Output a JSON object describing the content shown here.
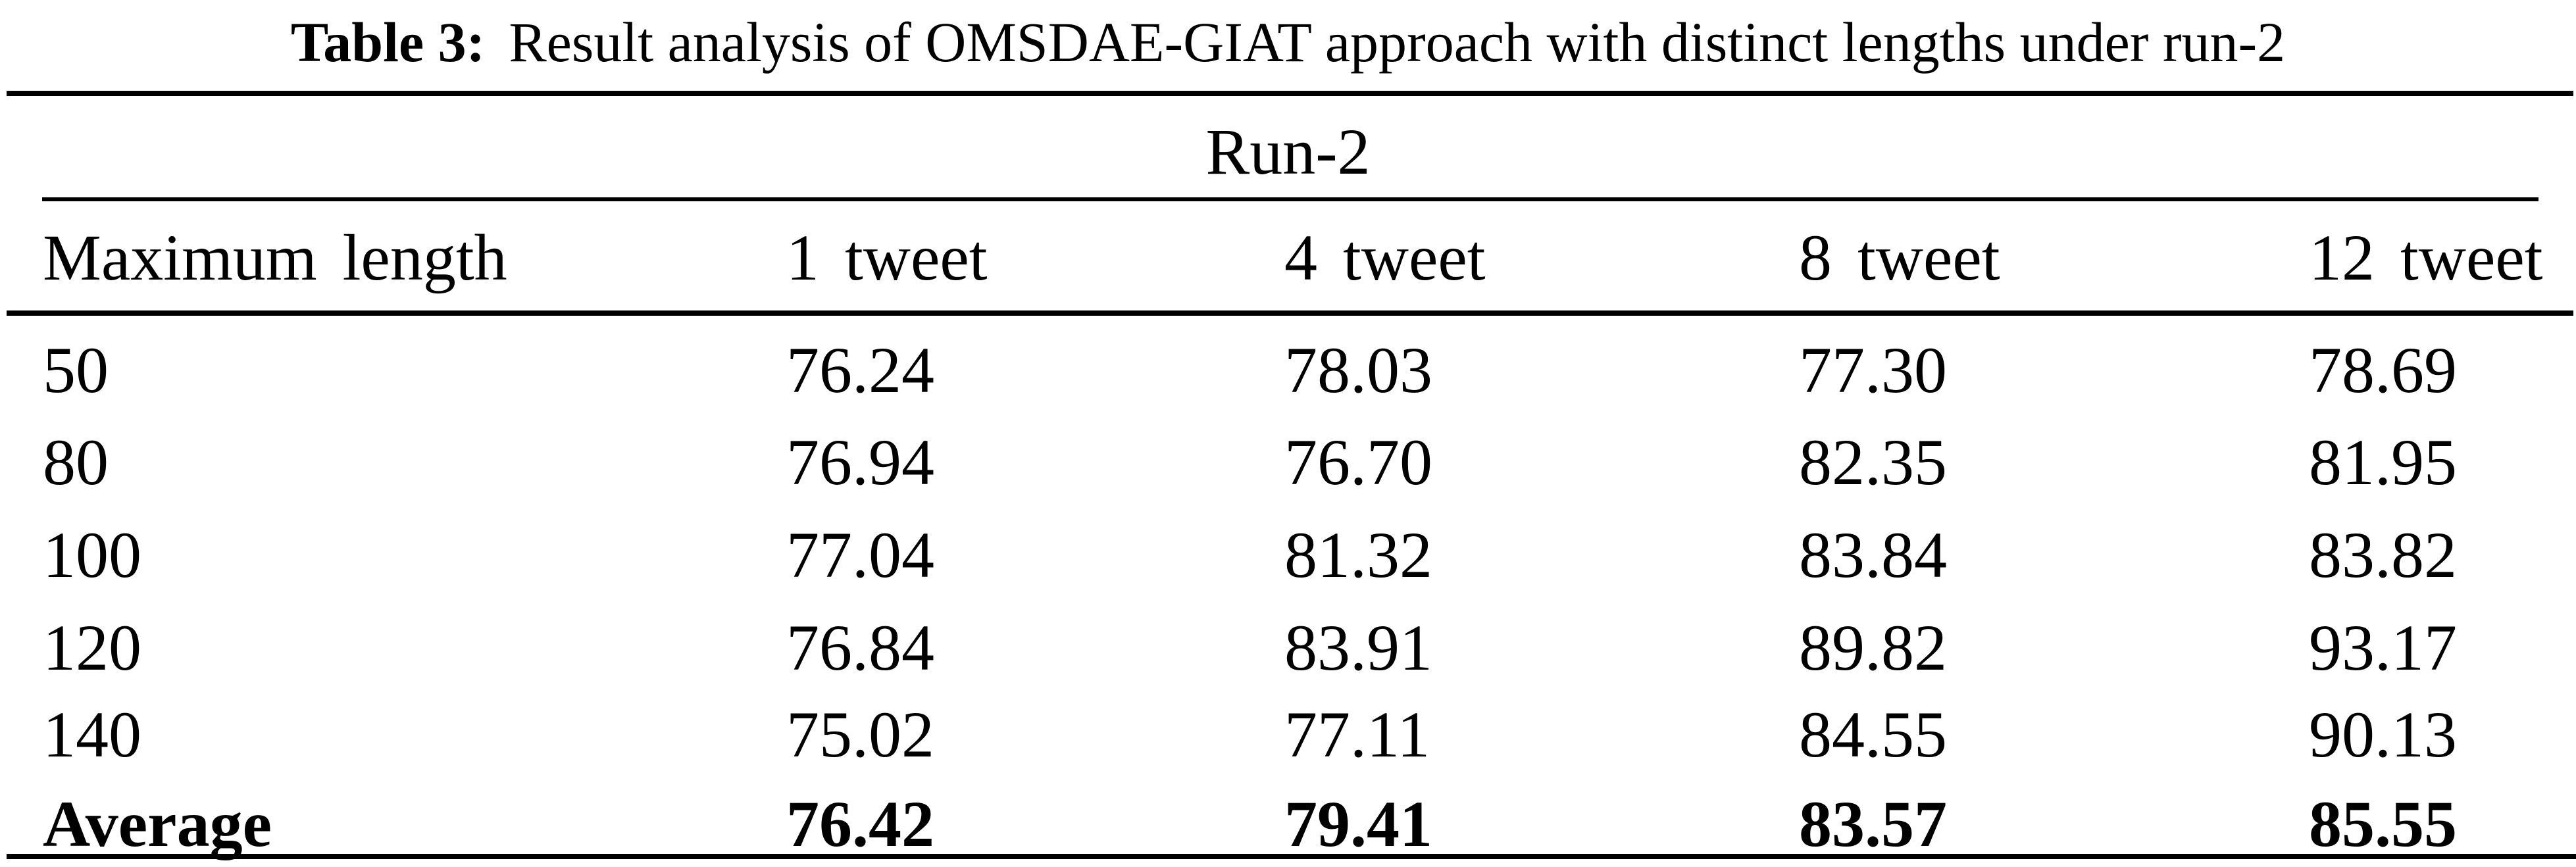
{
  "caption": {
    "label": "Table 3:",
    "text": "Result analysis of OMSDAE-GIAT approach with distinct lengths under run-2"
  },
  "table": {
    "span_header": "Run-2",
    "columns": [
      "Maximum length",
      "1 tweet",
      "4 tweet",
      "8 tweet",
      "12 tweet"
    ],
    "rows": [
      {
        "label": "50",
        "values": [
          "76.24",
          "78.03",
          "77.30",
          "78.69"
        ]
      },
      {
        "label": "80",
        "values": [
          "76.94",
          "76.70",
          "82.35",
          "81.95"
        ]
      },
      {
        "label": "100",
        "values": [
          "77.04",
          "81.32",
          "83.84",
          "83.82"
        ]
      },
      {
        "label": "120",
        "values": [
          "76.84",
          "83.91",
          "89.82",
          "93.17"
        ]
      },
      {
        "label": "140",
        "values": [
          "75.02",
          "77.11",
          "84.55",
          "90.13"
        ]
      },
      {
        "label": "Average",
        "values": [
          "76.42",
          "79.41",
          "83.57",
          "85.55"
        ]
      }
    ]
  },
  "colors": {
    "text": "#000000",
    "background": "#ffffff",
    "rule": "#000000"
  }
}
